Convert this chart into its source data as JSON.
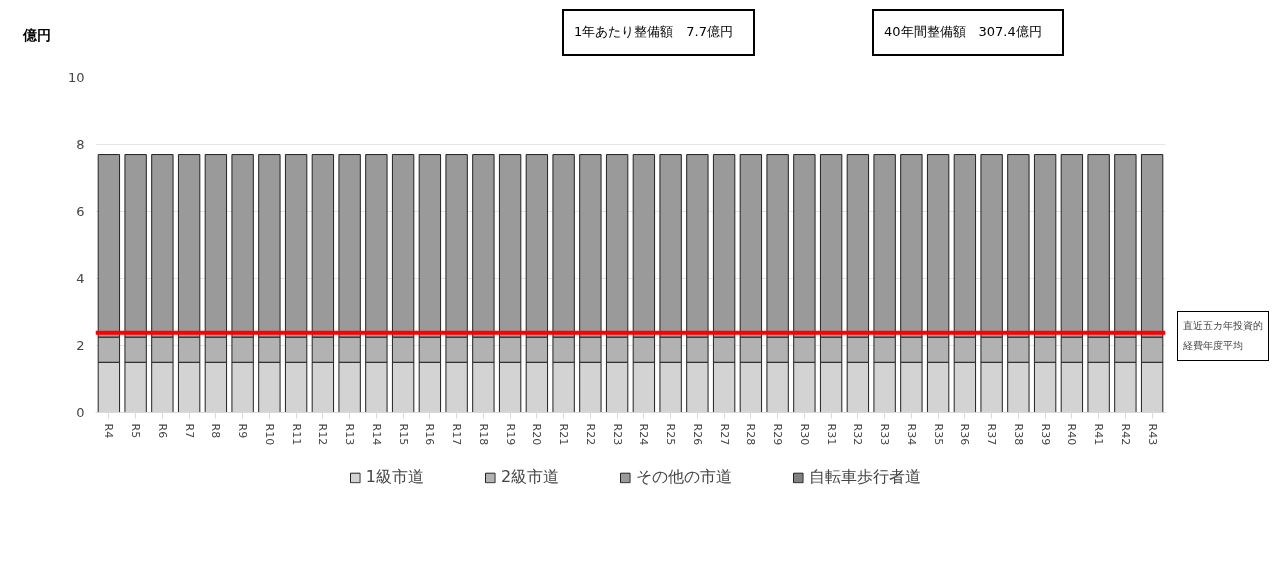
{
  "chart_data": {
    "type": "bar",
    "stacked": true,
    "ylabel": "億円",
    "categories": [
      "R4",
      "R5",
      "R6",
      "R7",
      "R8",
      "R9",
      "R10",
      "R11",
      "R12",
      "R13",
      "R14",
      "R15",
      "R16",
      "R17",
      "R18",
      "R19",
      "R20",
      "R21",
      "R22",
      "R23",
      "R24",
      "R25",
      "R26",
      "R27",
      "R28",
      "R29",
      "R30",
      "R31",
      "R32",
      "R33",
      "R34",
      "R35",
      "R36",
      "R37",
      "R38",
      "R39",
      "R40",
      "R41",
      "R42",
      "R43"
    ],
    "series": [
      {
        "name": "1級市道",
        "color": "#d3d3d3",
        "values": [
          1.5,
          1.5,
          1.5,
          1.5,
          1.5,
          1.5,
          1.5,
          1.5,
          1.5,
          1.5,
          1.5,
          1.5,
          1.5,
          1.5,
          1.5,
          1.5,
          1.5,
          1.5,
          1.5,
          1.5,
          1.5,
          1.5,
          1.5,
          1.5,
          1.5,
          1.5,
          1.5,
          1.5,
          1.5,
          1.5,
          1.5,
          1.5,
          1.5,
          1.5,
          1.5,
          1.5,
          1.5,
          1.5,
          1.5,
          1.5
        ]
      },
      {
        "name": "2級市道",
        "color": "#b2b2b2",
        "values": [
          0.75,
          0.75,
          0.75,
          0.75,
          0.75,
          0.75,
          0.75,
          0.75,
          0.75,
          0.75,
          0.75,
          0.75,
          0.75,
          0.75,
          0.75,
          0.75,
          0.75,
          0.75,
          0.75,
          0.75,
          0.75,
          0.75,
          0.75,
          0.75,
          0.75,
          0.75,
          0.75,
          0.75,
          0.75,
          0.75,
          0.75,
          0.75,
          0.75,
          0.75,
          0.75,
          0.75,
          0.75,
          0.75,
          0.75,
          0.75
        ]
      },
      {
        "name": "その他の市道",
        "color": "#9a9a9a",
        "values": [
          5.45,
          5.45,
          5.45,
          5.45,
          5.45,
          5.45,
          5.45,
          5.45,
          5.45,
          5.45,
          5.45,
          5.45,
          5.45,
          5.45,
          5.45,
          5.45,
          5.45,
          5.45,
          5.45,
          5.45,
          5.45,
          5.45,
          5.45,
          5.45,
          5.45,
          5.45,
          5.45,
          5.45,
          5.45,
          5.45,
          5.45,
          5.45,
          5.45,
          5.45,
          5.45,
          5.45,
          5.45,
          5.45,
          5.45,
          5.45
        ]
      },
      {
        "name": "自転車歩行者道",
        "color": "#808080",
        "values": [
          null,
          null,
          null,
          null,
          null,
          null,
          null,
          null,
          null,
          null,
          null,
          null,
          null,
          null,
          null,
          null,
          null,
          null,
          null,
          null,
          null,
          null,
          null,
          null,
          null,
          null,
          null,
          null,
          null,
          null,
          null,
          null,
          null,
          null,
          null,
          null,
          null,
          null,
          null,
          null
        ]
      }
    ],
    "ylim": [
      0,
      10
    ],
    "yticks": [
      0,
      2,
      4,
      6,
      8,
      10
    ],
    "grid": "y",
    "legend": "bottom",
    "ref_lines": [
      {
        "axis": "y",
        "value": 2.38,
        "label": "直近五カ年投資的経費年度平均",
        "color": "#ff0000"
      }
    ],
    "annotations": [
      "1年あたり整備額　7.7億円",
      "40年間整備額　307.4億円"
    ]
  }
}
